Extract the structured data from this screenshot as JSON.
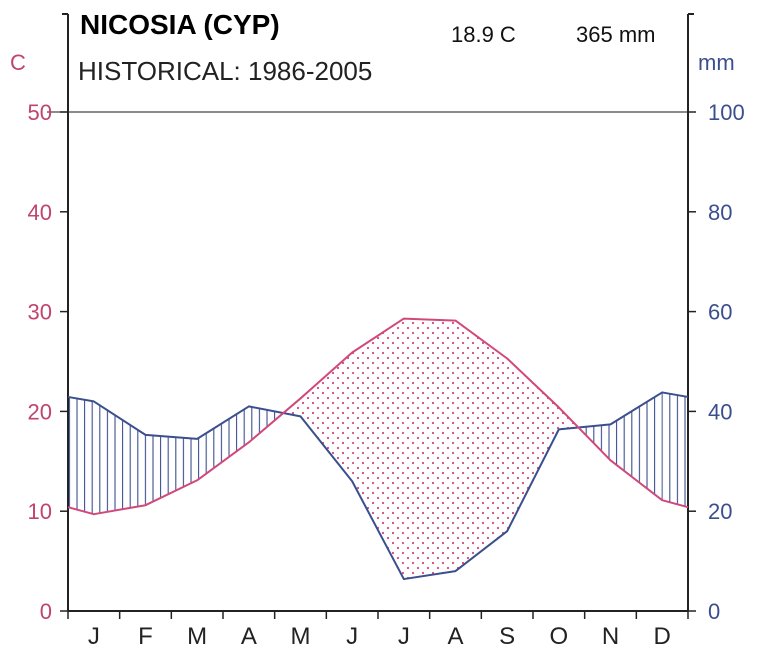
{
  "chart_data": {
    "type": "line",
    "title": "NICOSIA (CYP)",
    "subtitle": "HISTORICAL: 1986-2005",
    "mean_temperature": "18.9 C",
    "annual_precipitation": "365 mm",
    "left_axis_unit": "C",
    "right_axis_unit": "mm",
    "left_ylim": [
      0,
      50
    ],
    "right_ylim": [
      0,
      100
    ],
    "left_ticks": [
      "0",
      "10",
      "20",
      "30",
      "40",
      "50"
    ],
    "right_ticks": [
      "0",
      "20",
      "40",
      "60",
      "80",
      "100"
    ],
    "categories": [
      "J",
      "F",
      "M",
      "A",
      "M",
      "J",
      "J",
      "A",
      "S",
      "O",
      "N",
      "D"
    ],
    "series": [
      {
        "name": "temperature",
        "axis": "left",
        "color": "#d1487a",
        "values": [
          9.7,
          10.6,
          13.1,
          16.9,
          21.3,
          25.9,
          29.3,
          29.1,
          25.3,
          20.4,
          15.1,
          11.1
        ]
      },
      {
        "name": "precipitation",
        "axis": "right",
        "color": "#3b4f8e",
        "values": [
          42,
          35.3,
          34.5,
          41,
          39,
          26,
          6.4,
          8,
          16,
          36.4,
          37.4,
          43.8
        ]
      }
    ],
    "fill_wet": "vertical blue hatching where precipitation exceeds temperature",
    "fill_dry": "pink dots where temperature exceeds precipitation"
  }
}
